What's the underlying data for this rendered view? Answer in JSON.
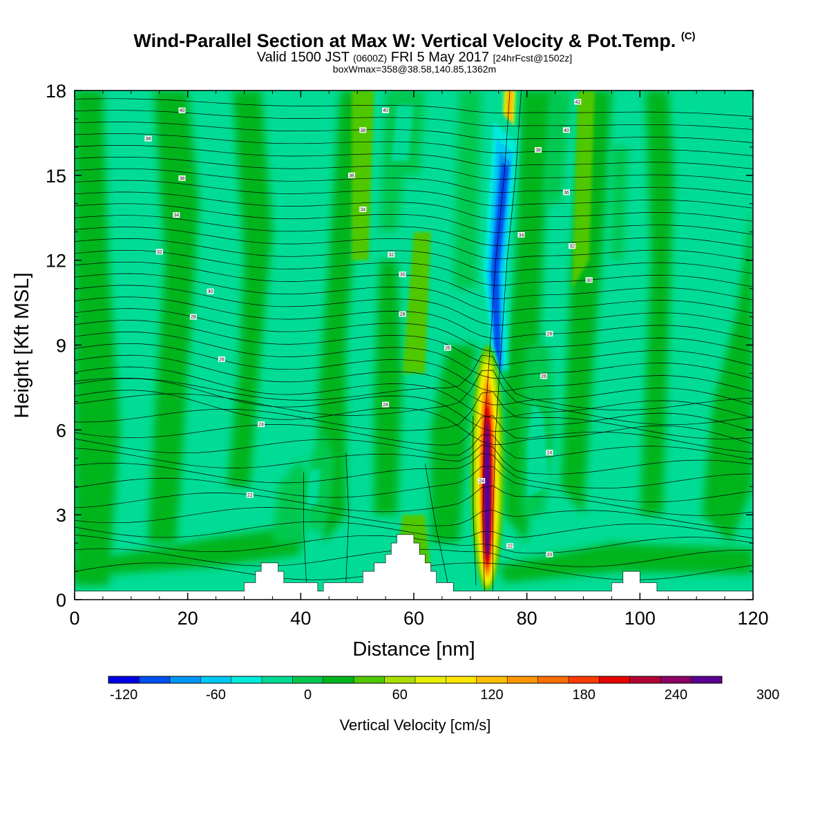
{
  "chart_data": {
    "type": "contour",
    "title": "Wind-Parallel Section at Max W: Vertical Velocity & Pot.Temp.",
    "title_mark": "(C)",
    "subtitle_main_a": "Valid 1500 JST",
    "subtitle_main_small_a": "(0600Z)",
    "subtitle_main_b": "FRI 5 May 2017",
    "subtitle_main_small_b": "[24hrFcst@1502z]",
    "subtitle_line2": "boxWmax=358@38.58,140.85,1362m",
    "xlabel": "Distance [nm]",
    "ylabel": "Height [Kft MSL]",
    "xlim": [
      0,
      120
    ],
    "ylim": [
      0,
      18
    ],
    "xticks": [
      "0",
      "20",
      "40",
      "60",
      "80",
      "100",
      "120"
    ],
    "yticks": [
      "0",
      "3",
      "6",
      "9",
      "12",
      "15",
      "18"
    ],
    "colorbar": {
      "title": "Vertical Velocity [cm/s]",
      "min": -130,
      "step": 20,
      "labels": [
        "-120",
        "-60",
        "0",
        "60",
        "120",
        "180",
        "240",
        "300"
      ],
      "label_values": [
        -120,
        -60,
        0,
        60,
        120,
        180,
        240,
        300
      ],
      "colors": [
        "#0000e6",
        "#0050f0",
        "#0096f5",
        "#00c8f5",
        "#00ebdc",
        "#00dc96",
        "#00c850",
        "#00b41e",
        "#50c800",
        "#aade00",
        "#e6f000",
        "#ffe600",
        "#ffbe00",
        "#ff9600",
        "#ff6e00",
        "#ff3c00",
        "#e60000",
        "#b40032",
        "#8c0064",
        "#5a0091"
      ]
    },
    "background_color": "#00dc96",
    "updraft_core": {
      "x": 73,
      "ymin": 0.3,
      "ymax": 9,
      "max_value": 358
    },
    "downdraft_core": {
      "x": 74.5,
      "ymin": 8,
      "ymax": 15,
      "min_value": -110
    },
    "terrain": [
      [
        0,
        0.3
      ],
      [
        30,
        0.3
      ],
      [
        30,
        0.6
      ],
      [
        32,
        0.6
      ],
      [
        32,
        1.0
      ],
      [
        33,
        1.0
      ],
      [
        33,
        1.3
      ],
      [
        36,
        1.3
      ],
      [
        36,
        1.0
      ],
      [
        37,
        1.0
      ],
      [
        37,
        0.6
      ],
      [
        43,
        0.6
      ],
      [
        43,
        0.3
      ],
      [
        44,
        0.3
      ],
      [
        44,
        0.6
      ],
      [
        51,
        0.6
      ],
      [
        51,
        1.0
      ],
      [
        53,
        1.0
      ],
      [
        53,
        1.3
      ],
      [
        55,
        1.3
      ],
      [
        55,
        1.6
      ],
      [
        56,
        1.6
      ],
      [
        56,
        2.0
      ],
      [
        57,
        2.0
      ],
      [
        57,
        2.3
      ],
      [
        60,
        2.3
      ],
      [
        60,
        2.0
      ],
      [
        61,
        2.0
      ],
      [
        61,
        1.6
      ],
      [
        62,
        1.6
      ],
      [
        62,
        1.3
      ],
      [
        63,
        1.3
      ],
      [
        63,
        1.0
      ],
      [
        64,
        1.0
      ],
      [
        64,
        0.6
      ],
      [
        67,
        0.6
      ],
      [
        67,
        0.3
      ],
      [
        95,
        0.3
      ],
      [
        95,
        0.6
      ],
      [
        97,
        0.6
      ],
      [
        97,
        1.0
      ],
      [
        100,
        1.0
      ],
      [
        100,
        0.6
      ],
      [
        103,
        0.6
      ],
      [
        103,
        0.3
      ],
      [
        120,
        0.3
      ]
    ],
    "theta_labels": [
      {
        "text": "40",
        "x": 19,
        "y": 17.3
      },
      {
        "text": "40",
        "x": 55,
        "y": 17.3
      },
      {
        "text": "42",
        "x": 89,
        "y": 17.6
      },
      {
        "text": "38",
        "x": 13,
        "y": 16.3
      },
      {
        "text": "38",
        "x": 51,
        "y": 16.6
      },
      {
        "text": "40",
        "x": 87,
        "y": 16.6
      },
      {
        "text": "38",
        "x": 82,
        "y": 15.9
      },
      {
        "text": "36",
        "x": 19,
        "y": 14.9
      },
      {
        "text": "36",
        "x": 49,
        "y": 15.0
      },
      {
        "text": "36",
        "x": 87,
        "y": 14.4
      },
      {
        "text": "34",
        "x": 18,
        "y": 13.6
      },
      {
        "text": "34",
        "x": 51,
        "y": 13.8
      },
      {
        "text": "34",
        "x": 79,
        "y": 12.9
      },
      {
        "text": "32",
        "x": 15,
        "y": 12.3
      },
      {
        "text": "32",
        "x": 56,
        "y": 12.2
      },
      {
        "text": "32",
        "x": 88,
        "y": 12.5
      },
      {
        "text": "30",
        "x": 58,
        "y": 11.5
      },
      {
        "text": "30",
        "x": 91,
        "y": 11.3
      },
      {
        "text": "30",
        "x": 24,
        "y": 10.9
      },
      {
        "text": "28",
        "x": 21,
        "y": 10.0
      },
      {
        "text": "28",
        "x": 58,
        "y": 10.1
      },
      {
        "text": "28",
        "x": 84,
        "y": 9.4
      },
      {
        "text": "26",
        "x": 26,
        "y": 8.5
      },
      {
        "text": "26",
        "x": 66,
        "y": 8.9
      },
      {
        "text": "26",
        "x": 83,
        "y": 7.9
      },
      {
        "text": "24",
        "x": 33,
        "y": 6.2
      },
      {
        "text": "24",
        "x": 55,
        "y": 6.9
      },
      {
        "text": "24",
        "x": 84,
        "y": 5.2
      },
      {
        "text": "24",
        "x": 72,
        "y": 4.2
      },
      {
        "text": "22",
        "x": 31,
        "y": 3.7
      },
      {
        "text": "22",
        "x": 77,
        "y": 1.9
      },
      {
        "text": "20",
        "x": 84,
        "y": 1.6
      }
    ]
  }
}
